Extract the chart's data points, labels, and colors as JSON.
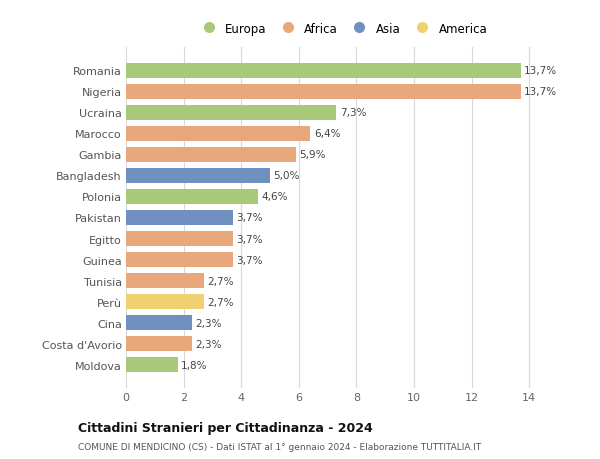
{
  "countries": [
    "Romania",
    "Nigeria",
    "Ucraina",
    "Marocco",
    "Gambia",
    "Bangladesh",
    "Polonia",
    "Pakistan",
    "Egitto",
    "Guinea",
    "Tunisia",
    "Perù",
    "Cina",
    "Costa d'Avorio",
    "Moldova"
  ],
  "values": [
    13.7,
    13.7,
    7.3,
    6.4,
    5.9,
    5.0,
    4.6,
    3.7,
    3.7,
    3.7,
    2.7,
    2.7,
    2.3,
    2.3,
    1.8
  ],
  "continents": [
    "Europa",
    "Africa",
    "Europa",
    "Africa",
    "Africa",
    "Asia",
    "Europa",
    "Asia",
    "Africa",
    "Africa",
    "Africa",
    "America",
    "Asia",
    "Africa",
    "Europa"
  ],
  "colors": {
    "Europa": "#a8c87a",
    "Africa": "#e8a87c",
    "Asia": "#7090c0",
    "America": "#f0d070"
  },
  "legend_order": [
    "Europa",
    "Africa",
    "Asia",
    "America"
  ],
  "title": "Cittadini Stranieri per Cittadinanza - 2024",
  "subtitle": "COMUNE DI MENDICINO (CS) - Dati ISTAT al 1° gennaio 2024 - Elaborazione TUTTITALIA.IT",
  "xlim": [
    0,
    15
  ],
  "xticks": [
    0,
    2,
    4,
    6,
    8,
    10,
    12,
    14
  ],
  "bg_color": "#ffffff",
  "grid_color": "#d8d8d8",
  "bar_height": 0.72
}
